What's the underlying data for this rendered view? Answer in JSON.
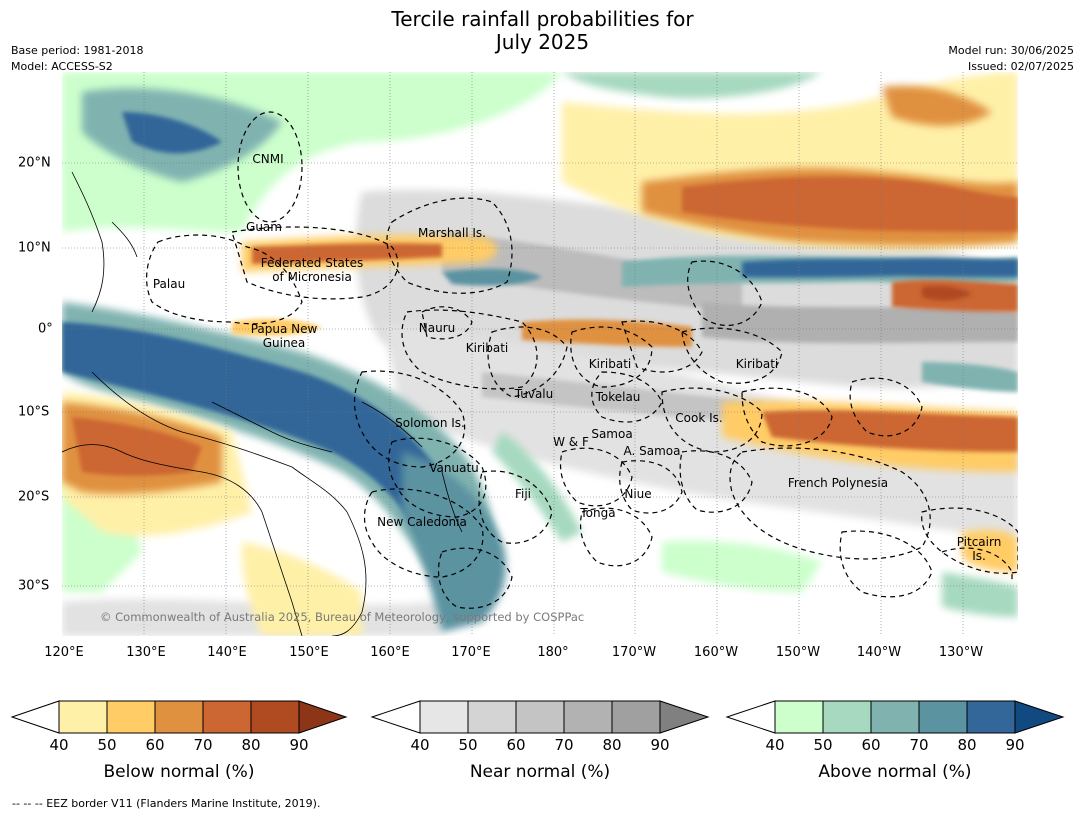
{
  "title": "Tercile rainfall probabilities for\nJuly 2025",
  "title_line1": "Tercile rainfall probabilities for",
  "title_line2": "July 2025",
  "base_period": "Base period: 1981-2018",
  "model": "Model: ACCESS-S2",
  "model_run": "Model run: 30/06/2025",
  "issued": "Issued: 02/07/2025",
  "copyright": "© Commonwealth of Australia 2025, Bureau of Meteorology, supported by COSPPac",
  "eez_note": "-- -- -- EEZ border V11 (Flanders Marine Institute, 2019).",
  "lon_ticks": [
    "120°E",
    "130°E",
    "140°E",
    "150°E",
    "160°E",
    "170°E",
    "180°",
    "170°W",
    "160°W",
    "150°W",
    "140°W",
    "130°W"
  ],
  "lat_ticks": [
    "20°N",
    "10°N",
    "0°",
    "10°S",
    "20°S",
    "30°S"
  ],
  "regions": {
    "cnmi": "CNMI",
    "guam": "Guam",
    "palau": "Palau",
    "fsm_1": "Federated States",
    "fsm_2": "of Micronesia",
    "marshall": "Marshall Is.",
    "png_1": "Papua New",
    "png_2": "Guinea",
    "nauru": "Nauru",
    "kiribati_w": "Kiribati",
    "kiribati_c": "Kiribati",
    "kiribati_e": "Kiribati",
    "tuvalu": "Tuvalu",
    "tokelau": "Tokelau",
    "cook": "Cook Is.",
    "solomon": "Solomon Is.",
    "samoa": "Samoa",
    "wf": "W & F",
    "asamoa": "A. Samoa",
    "vanuatu": "Vanuatu",
    "fiji": "Fiji",
    "niue": "Niue",
    "tonga": "Tonga",
    "newcal": "New Caledonia",
    "frpoly": "French Polynesia",
    "pitcairn_1": "Pitcairn",
    "pitcairn_2": "Is."
  },
  "colorbars": [
    {
      "label": "Below normal (%)",
      "ticks": [
        "40",
        "50",
        "60",
        "70",
        "80",
        "90"
      ],
      "colors": [
        "#ffffff",
        "#fff0a8",
        "#ffcc66",
        "#e0913f",
        "#cc6633",
        "#b04a20",
        "#8c3517"
      ]
    },
    {
      "label": "Near normal (%)",
      "ticks": [
        "40",
        "50",
        "60",
        "70",
        "80",
        "90"
      ],
      "colors": [
        "#ffffff",
        "#e6e6e6",
        "#d4d4d4",
        "#c4c4c4",
        "#b2b2b2",
        "#a0a0a0",
        "#808080"
      ]
    },
    {
      "label": "Above normal (%)",
      "ticks": [
        "40",
        "50",
        "60",
        "70",
        "80",
        "90"
      ],
      "colors": [
        "#ffffff",
        "#ccffcc",
        "#a6d9bf",
        "#80b3b0",
        "#5b93a1",
        "#336699",
        "#114a80"
      ]
    }
  ]
}
